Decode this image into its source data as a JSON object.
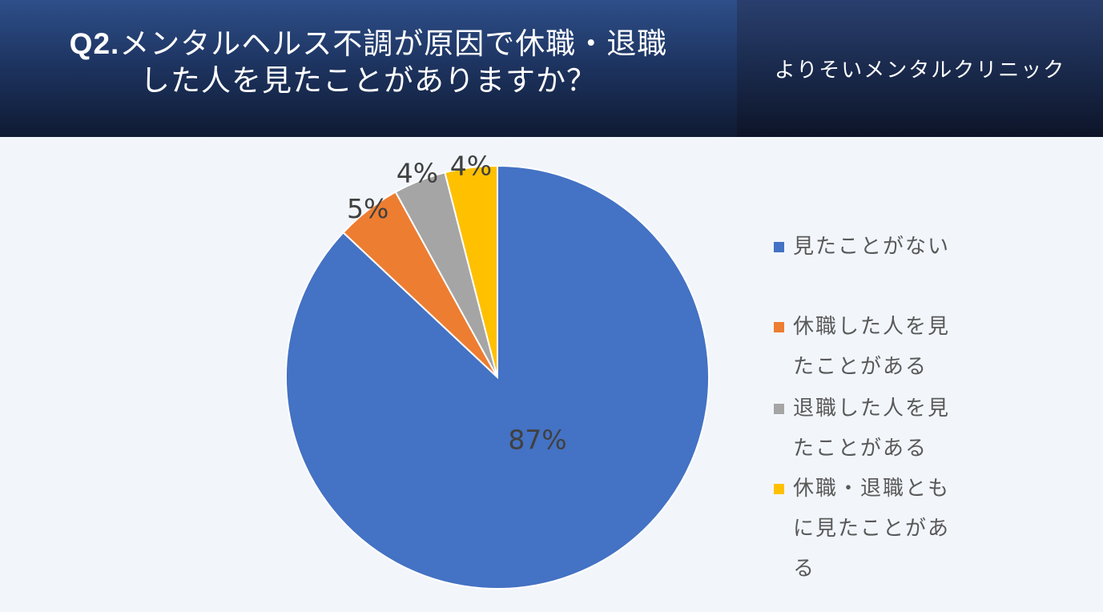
{
  "header": {
    "title_prefix": "Q2.",
    "title_line1_rest": "メンタルヘルス不調が原因で休職・退職",
    "title_line2": "した人を見たことがありますか？",
    "brand": "よりそいメンタルクリニック"
  },
  "chart_data": {
    "type": "pie",
    "series": [
      {
        "name": "見たことがない",
        "value": 87,
        "label": "87%",
        "color": "#4472c4"
      },
      {
        "name": "休職した人を見たことがある",
        "value": 5,
        "label": "5%",
        "color": "#ed7d31"
      },
      {
        "name": "退職した人を見たことがある",
        "value": 4,
        "label": "4%",
        "color": "#a5a5a5"
      },
      {
        "name": "休職・退職ともに見たことがある",
        "value": 4,
        "label": "4%",
        "color": "#ffc000"
      }
    ],
    "legend_position": "right"
  },
  "legend": {
    "items": [
      {
        "line1": "見たことがない",
        "line2": "",
        "line3": ""
      },
      {
        "line1": "休職した人を見",
        "line2": "たことがある",
        "line3": ""
      },
      {
        "line1": "退職した人を見",
        "line2": "たことがある",
        "line3": ""
      },
      {
        "line1": "休職・退職とも",
        "line2": "に見たことがあ",
        "line3": "る"
      }
    ]
  }
}
